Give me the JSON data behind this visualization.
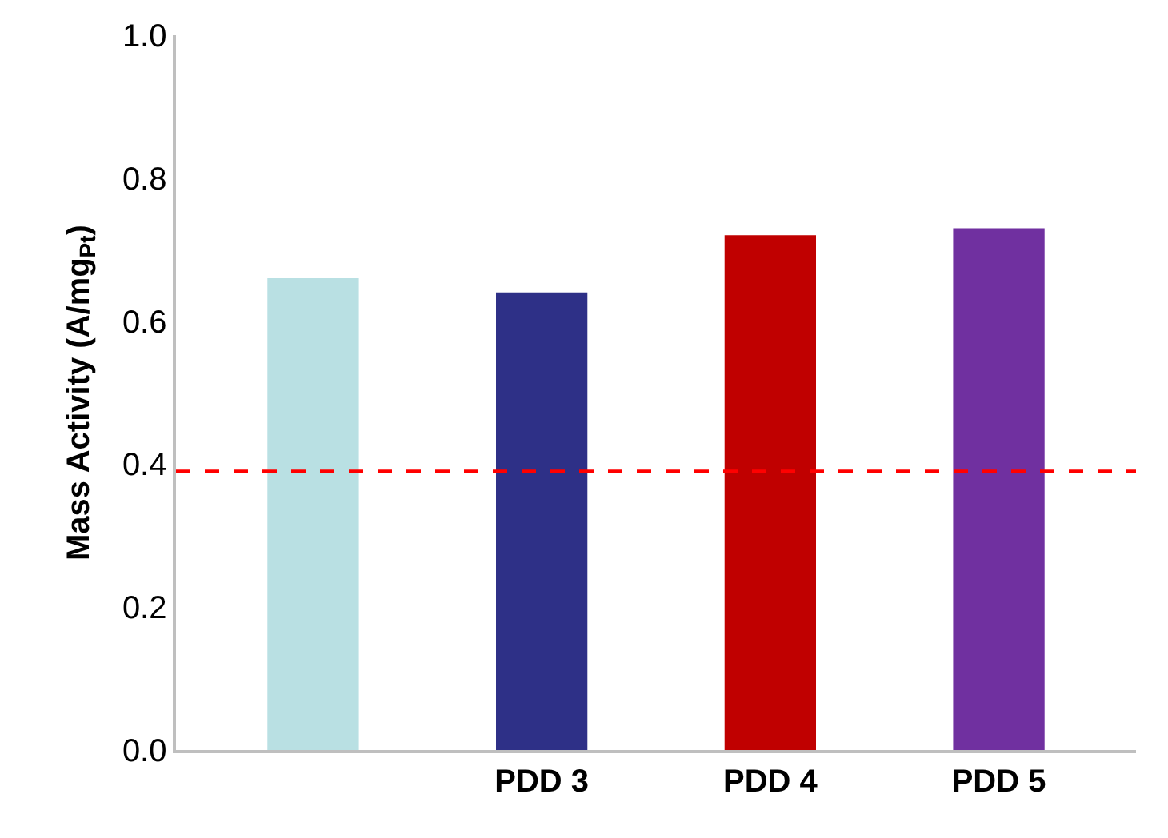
{
  "chart_data": {
    "type": "bar",
    "ylabel": "Mass Activity (A/mg$_{Pt}$)",
    "categories": [
      null,
      "PDD 3",
      "PDD 4",
      "PDD 5"
    ],
    "values": [
      0.66,
      0.64,
      0.72,
      0.73
    ],
    "colors": [
      "#b9e0e3",
      "#2e3087",
      "#c00000",
      "#7030a0"
    ],
    "ylim": [
      0,
      1.0
    ],
    "yticks": [
      {
        "value": 0,
        "label": "0.0"
      },
      {
        "value": 0.2,
        "label": "0.2"
      },
      {
        "value": 0.4,
        "label": "0.4"
      },
      {
        "value": 0.6,
        "label": "0.6"
      },
      {
        "value": 0.8,
        "label": "0.8"
      },
      {
        "value": 1.0,
        "label": "1.0"
      }
    ],
    "ref_lines": [
      {
        "axis": "y",
        "value": 0.39,
        "color": "#ff0000",
        "line_style": "dashed"
      }
    ]
  }
}
